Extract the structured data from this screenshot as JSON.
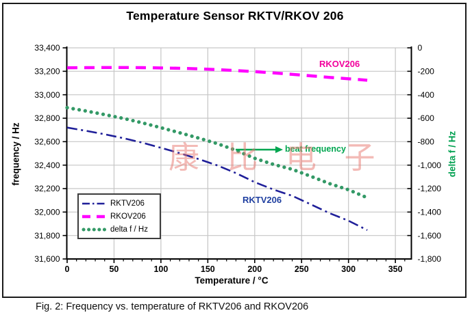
{
  "figure": {
    "title": "Temperature Sensor RKTV/RKOV 206",
    "caption": "Fig. 2: Frequency vs. temperature of RKTV206 and RKOV206",
    "watermark": "康 比 电 子"
  },
  "chart_data": {
    "type": "line",
    "title": "Temperature Sensor RKTV/RKOV 206",
    "xlabel": "Temperature / °C",
    "ylabel_left": "frequency / Hz",
    "ylabel_right": "delta f / Hz",
    "xlim": [
      0,
      350
    ],
    "ylim_left": [
      31600,
      33400
    ],
    "ylim_right": [
      -1800,
      0
    ],
    "grid": true,
    "legend_position": "inside-bottom-left",
    "x_tick_labels": [
      "0",
      "50",
      "100",
      "150",
      "200",
      "250",
      "300",
      "350"
    ],
    "x_tick_values": [
      0,
      50,
      100,
      150,
      200,
      250,
      300,
      350
    ],
    "y_left_tick_labels": [
      "33,400",
      "33,200",
      "33,000",
      "32,800",
      "32,600",
      "32,400",
      "32,200",
      "32,000",
      "31,800",
      "31,600"
    ],
    "y_left_tick_values": [
      33400,
      33200,
      33000,
      32800,
      32600,
      32400,
      32200,
      32000,
      31800,
      31600
    ],
    "y_right_tick_labels": [
      "0",
      "-200",
      "-400",
      "-600",
      "-800",
      "-1,000",
      "-1,200",
      "-1,400",
      "-1,600",
      "-1,800"
    ],
    "y_right_tick_values": [
      0,
      -200,
      -400,
      -600,
      -800,
      -1000,
      -1200,
      -1400,
      -1600,
      -1800
    ],
    "x": [
      0,
      20,
      40,
      60,
      80,
      100,
      120,
      140,
      160,
      180,
      200,
      220,
      240,
      260,
      280,
      300,
      320
    ],
    "series": [
      {
        "name": "RKTV206",
        "axis": "left",
        "style": "dash-dot",
        "color": "#1F1F99",
        "values": [
          32720,
          32693,
          32663,
          32630,
          32592,
          32548,
          32502,
          32452,
          32398,
          32332,
          32255,
          32192,
          32138,
          32065,
          31990,
          31926,
          31846
        ]
      },
      {
        "name": "RKOV206",
        "axis": "left",
        "style": "dashed",
        "color": "#FF00FF",
        "values": [
          33230,
          33231,
          33232,
          33232,
          33231,
          33229,
          33226,
          33221,
          33214,
          33206,
          33197,
          33186,
          33174,
          33161,
          33148,
          33136,
          33124
        ]
      },
      {
        "name": "delta f / Hz",
        "axis": "right",
        "style": "dotted",
        "color": "#339966",
        "values": [
          -510,
          -538,
          -569,
          -602,
          -639,
          -681,
          -724,
          -769,
          -816,
          -874,
          -942,
          -994,
          -1036,
          -1096,
          -1158,
          -1210,
          -1278
        ]
      }
    ],
    "annotations": [
      {
        "id": "rkov_label",
        "text": "RKOV206",
        "color": "#F2009C"
      },
      {
        "id": "rktv_label",
        "text": "RKTV206",
        "color": "#1F3FA0"
      },
      {
        "id": "beat_frequency_label",
        "text": "beat frequency",
        "color": "#00A650",
        "arrow": true
      }
    ],
    "colors": {
      "gridline": "#C6C6C6",
      "axis": "#000000",
      "annotation_green": "#00A650"
    }
  }
}
